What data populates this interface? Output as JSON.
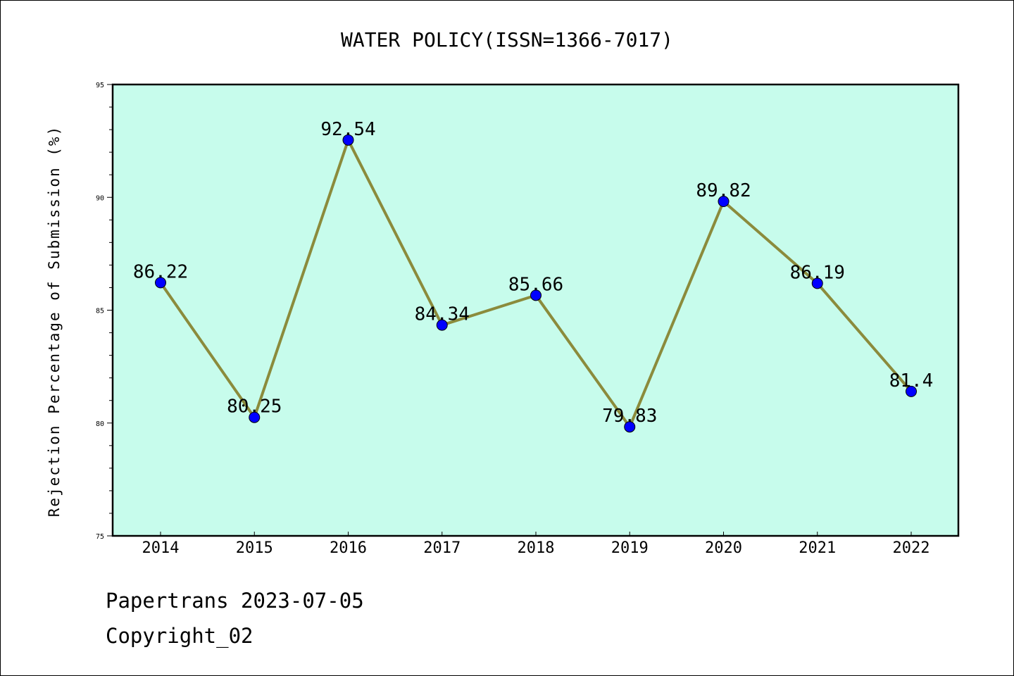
{
  "chart_data": {
    "type": "line",
    "title": "WATER POLICY(ISSN=1366-7017)",
    "xlabel": "",
    "ylabel": "Rejection Percentage of Submission (%)",
    "categories": [
      "2014",
      "2015",
      "2016",
      "2017",
      "2018",
      "2019",
      "2020",
      "2021",
      "2022"
    ],
    "values": [
      86.22,
      80.25,
      92.54,
      84.34,
      85.66,
      79.83,
      89.82,
      86.19,
      81.4
    ],
    "data_labels": [
      "86.22",
      "80.25",
      "92.54",
      "84.34",
      "85.66",
      "79.83",
      "89.82",
      "86.19",
      "81.4"
    ],
    "ylim": [
      75,
      95
    ],
    "yticks": [
      75,
      80,
      85,
      90,
      95
    ],
    "ytick_labels": [
      "75",
      "80",
      "85",
      "90",
      "95"
    ],
    "grid": false,
    "legend": "none",
    "colors": {
      "plot_background": "#c7fcec",
      "line": "#8b8b3c",
      "marker": "#0000ff"
    }
  },
  "footer": {
    "line1": "Papertrans 2023-07-05",
    "line2": "Copyright_02"
  }
}
